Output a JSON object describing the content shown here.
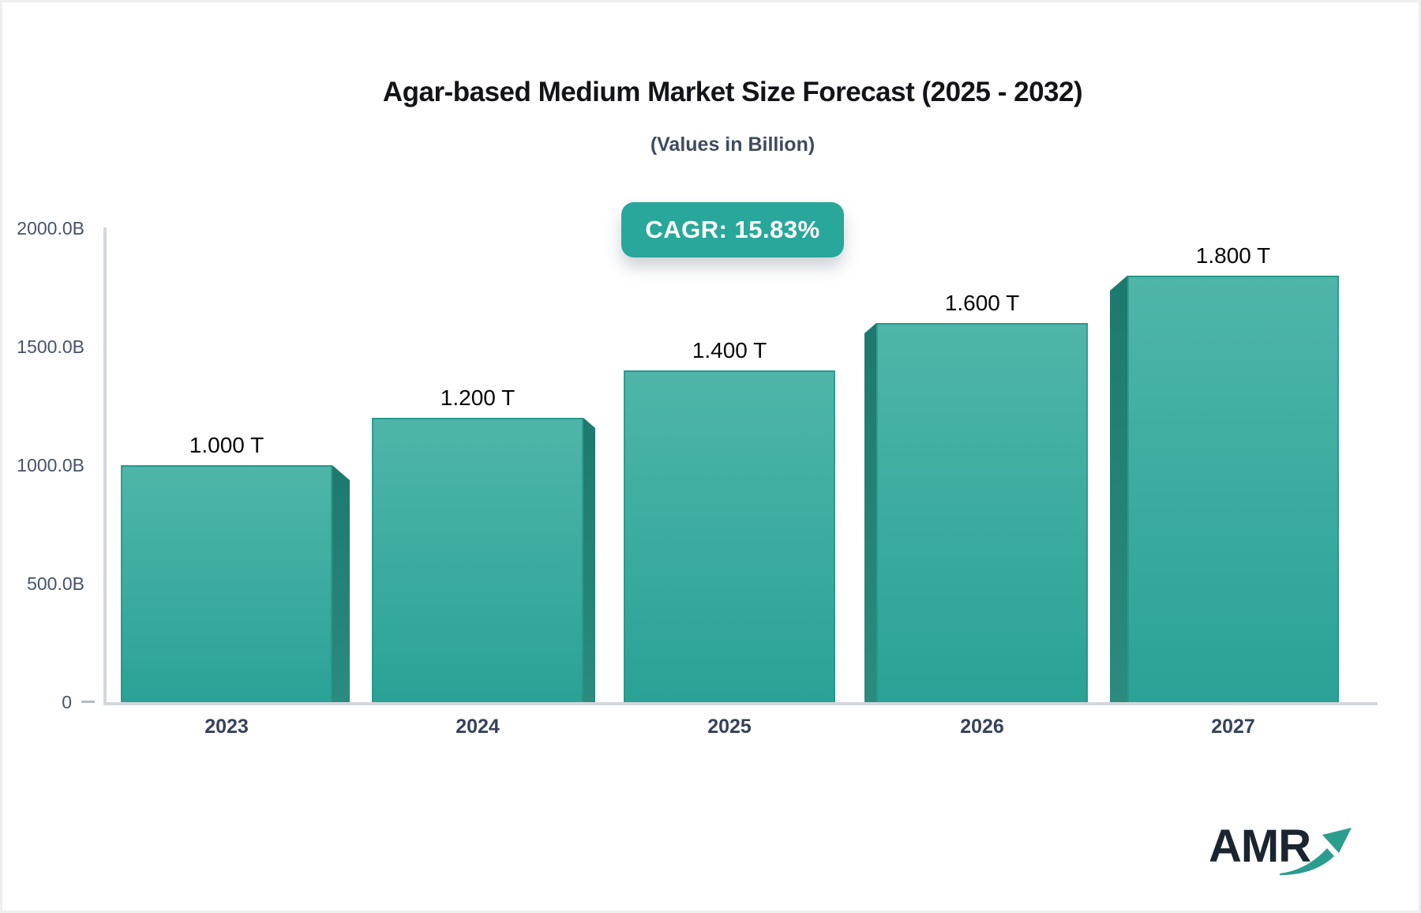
{
  "title": "Agar-based Medium Market Size Forecast (2025 - 2032)",
  "subtitle": "(Values in Billion)",
  "cagr": {
    "label": "CAGR: 15.83%"
  },
  "logo": {
    "text": "AMR",
    "arrow_icon": "growth-arrow-icon"
  },
  "colors": {
    "badge_bg": "#2aa79b",
    "bar_face_top": "#4fb5a9",
    "bar_face_bottom": "#2aa296",
    "bar_side_dark": "#1d796e",
    "axis_line": "#d3d7de",
    "title_text": "#121418",
    "subtitle_text": "#3d4b60",
    "ytick_text": "#46536a",
    "xtick_text": "#36425b",
    "value_label_text": "#070707",
    "logo_text": "#1a2530",
    "logo_arrow": "#2a9d8f"
  },
  "chart_data": {
    "type": "bar",
    "title": "Agar-based Medium Market Size Forecast (2025 - 2032)",
    "subtitle": "(Values in Billion)",
    "annotation": "CAGR: 15.83%",
    "categories": [
      "2023",
      "2024",
      "2025",
      "2026",
      "2027"
    ],
    "values": [
      1000,
      1200,
      1400,
      1600,
      1800
    ],
    "value_labels": [
      "1.000 T",
      "1.200 T",
      "1.400 T",
      "1.600 T",
      "1.800 T"
    ],
    "unit": "Billion",
    "xlabel": "",
    "ylabel": "",
    "ylim": [
      0,
      2000
    ],
    "yticks": [
      2000,
      1500,
      1000,
      500,
      0
    ],
    "ytick_labels": [
      "2000.0B",
      "1500.0B",
      "1000.0B",
      "500.0B",
      "0"
    ],
    "grid": false,
    "legend": false,
    "bar_3d_side": [
      "right",
      "right",
      "none",
      "left",
      "left"
    ],
    "bar_3d_side_widths": [
      22,
      15,
      0,
      15,
      22
    ]
  }
}
